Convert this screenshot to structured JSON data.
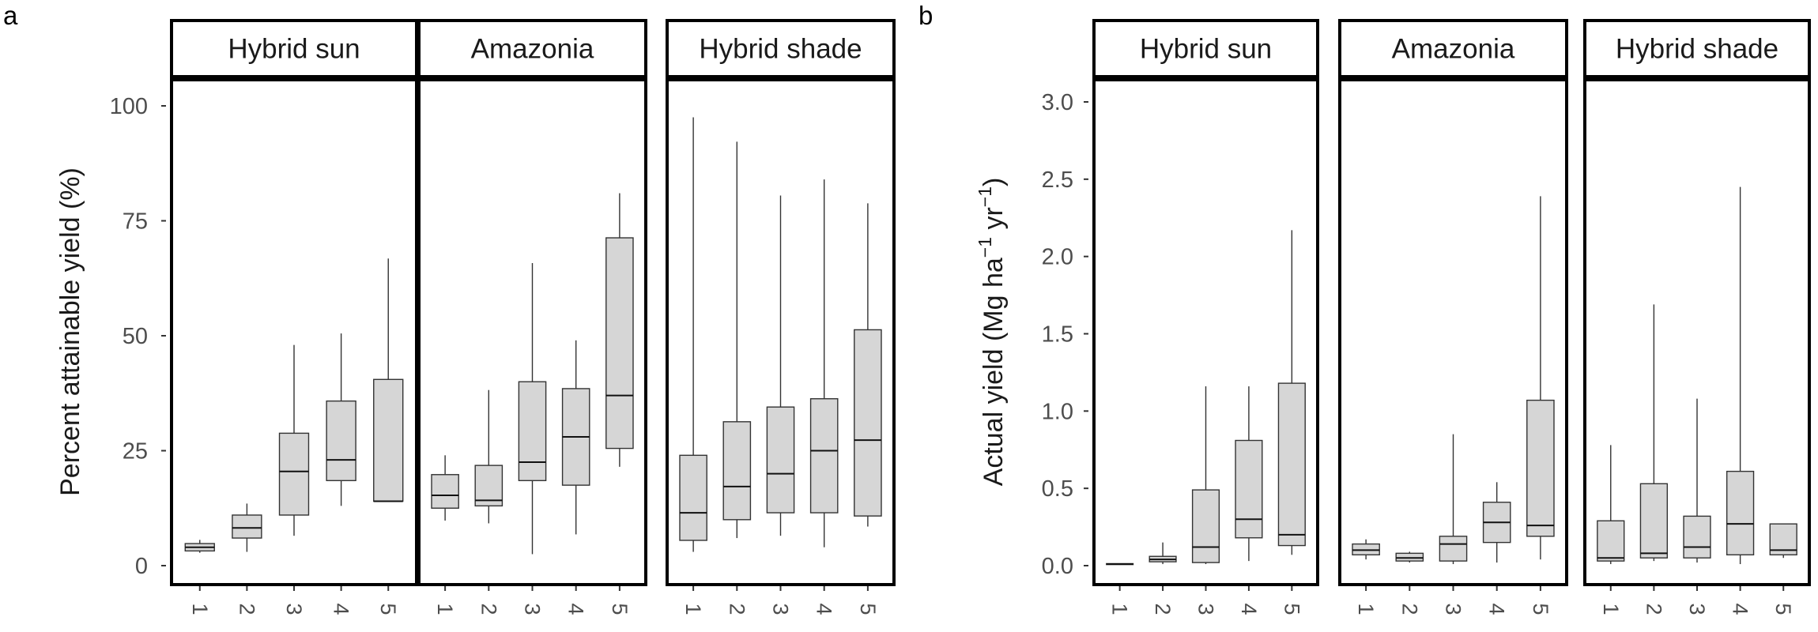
{
  "figure": {
    "panel_a_label": "a",
    "panel_b_label": "b"
  },
  "colors": {
    "box_fill": "#d6d6d6",
    "stroke": "#000000",
    "whisker": "#333333",
    "tick_text": "#4d4d4d",
    "axis_title": "#1a1a1a"
  },
  "chart_data": [
    {
      "type": "boxplot",
      "panel": "a",
      "ylabel": "Percent attainable yield (%)",
      "xlabel": "",
      "ylim": [
        -4,
        115
      ],
      "yticks": [
        0,
        25,
        50,
        75,
        100
      ],
      "grid": false,
      "legend": "none",
      "facets": [
        {
          "name": "Hybrid sun",
          "categories": [
            "1",
            "2",
            "3",
            "4",
            "5"
          ],
          "boxes": [
            {
              "category": "1",
              "min": 2.8,
              "q1": 3.2,
              "median": 4.0,
              "q3": 4.8,
              "max": 5.6
            },
            {
              "category": "2",
              "min": 3.0,
              "q1": 6.0,
              "median": 8.2,
              "q3": 11.0,
              "max": 13.5
            },
            {
              "category": "3",
              "min": 6.5,
              "q1": 11.0,
              "median": 20.5,
              "q3": 28.8,
              "max": 48.0
            },
            {
              "category": "4",
              "min": 13.0,
              "q1": 18.5,
              "median": 23.0,
              "q3": 35.8,
              "max": 50.5
            },
            {
              "category": "5",
              "min": 14.0,
              "q1": 14.0,
              "median": 14.0,
              "q3": 40.5,
              "max": 66.8
            }
          ]
        },
        {
          "name": "Amazonia",
          "categories": [
            "1",
            "2",
            "3",
            "4",
            "5"
          ],
          "boxes": [
            {
              "category": "1",
              "min": 9.8,
              "q1": 12.5,
              "median": 15.3,
              "q3": 19.8,
              "max": 24.0
            },
            {
              "category": "2",
              "min": 9.2,
              "q1": 13.0,
              "median": 14.2,
              "q3": 21.8,
              "max": 38.2
            },
            {
              "category": "3",
              "min": 2.5,
              "q1": 18.5,
              "median": 22.5,
              "q3": 40.0,
              "max": 65.8
            },
            {
              "category": "4",
              "min": 6.8,
              "q1": 17.5,
              "median": 28.0,
              "q3": 38.5,
              "max": 49.0
            },
            {
              "category": "5",
              "min": 21.5,
              "q1": 25.5,
              "median": 37.0,
              "q3": 71.3,
              "max": 81.0
            }
          ]
        },
        {
          "name": "Hybrid shade",
          "categories": [
            "1",
            "2",
            "3",
            "4",
            "5"
          ],
          "boxes": [
            {
              "category": "1",
              "min": 3.0,
              "q1": 5.5,
              "median": 11.5,
              "q3": 24.0,
              "max": 97.5
            },
            {
              "category": "2",
              "min": 6.0,
              "q1": 10.0,
              "median": 17.2,
              "q3": 31.3,
              "max": 92.2
            },
            {
              "category": "3",
              "min": 6.5,
              "q1": 11.5,
              "median": 20.0,
              "q3": 34.5,
              "max": 80.5
            },
            {
              "category": "4",
              "min": 4.0,
              "q1": 11.5,
              "median": 25.0,
              "q3": 36.3,
              "max": 84.0
            },
            {
              "category": "5",
              "min": 8.5,
              "q1": 10.8,
              "median": 27.3,
              "q3": 51.3,
              "max": 78.8
            }
          ]
        }
      ]
    },
    {
      "type": "boxplot",
      "panel": "b",
      "ylabel": "Actual yield (Mg  ha^-1 yr^-1)",
      "ylabel_parts": {
        "prefix": "Actual yield (Mg  ha",
        "sup1": "−1",
        "mid": " yr",
        "sup2": "−1",
        "suffix": ")"
      },
      "xlabel": "",
      "ylim": [
        -0.14,
        3.2
      ],
      "yticks": [
        0.0,
        0.5,
        1.0,
        1.5,
        2.0,
        2.5,
        3.0
      ],
      "ytick_labels": [
        "0.0",
        "0.5",
        "1.0",
        "1.5",
        "2.0",
        "2.5",
        "3.0"
      ],
      "grid": false,
      "legend": "none",
      "facets": [
        {
          "name": "Hybrid sun",
          "categories": [
            "1",
            "2",
            "3",
            "4",
            "5"
          ],
          "boxes": [
            {
              "category": "1",
              "min": 0.005,
              "q1": 0.007,
              "median": 0.01,
              "q3": 0.013,
              "max": 0.015
            },
            {
              "category": "2",
              "min": 0.01,
              "q1": 0.025,
              "median": 0.04,
              "q3": 0.06,
              "max": 0.15
            },
            {
              "category": "3",
              "min": 0.01,
              "q1": 0.02,
              "median": 0.12,
              "q3": 0.49,
              "max": 1.16
            },
            {
              "category": "4",
              "min": 0.03,
              "q1": 0.18,
              "median": 0.3,
              "q3": 0.81,
              "max": 1.16
            },
            {
              "category": "5",
              "min": 0.07,
              "q1": 0.13,
              "median": 0.2,
              "q3": 1.18,
              "max": 2.17
            }
          ]
        },
        {
          "name": "Amazonia",
          "categories": [
            "1",
            "2",
            "3",
            "4",
            "5"
          ],
          "boxes": [
            {
              "category": "1",
              "min": 0.04,
              "q1": 0.07,
              "median": 0.1,
              "q3": 0.14,
              "max": 0.17
            },
            {
              "category": "2",
              "min": 0.02,
              "q1": 0.03,
              "median": 0.05,
              "q3": 0.08,
              "max": 0.09
            },
            {
              "category": "3",
              "min": 0.01,
              "q1": 0.03,
              "median": 0.14,
              "q3": 0.19,
              "max": 0.85
            },
            {
              "category": "4",
              "min": 0.02,
              "q1": 0.15,
              "median": 0.28,
              "q3": 0.41,
              "max": 0.54
            },
            {
              "category": "5",
              "min": 0.04,
              "q1": 0.19,
              "median": 0.26,
              "q3": 1.07,
              "max": 2.39
            }
          ]
        },
        {
          "name": "Hybrid shade",
          "categories": [
            "1",
            "2",
            "3",
            "4",
            "5"
          ],
          "boxes": [
            {
              "category": "1",
              "min": 0.01,
              "q1": 0.03,
              "median": 0.05,
              "q3": 0.29,
              "max": 0.78
            },
            {
              "category": "2",
              "min": 0.03,
              "q1": 0.05,
              "median": 0.08,
              "q3": 0.53,
              "max": 1.69
            },
            {
              "category": "3",
              "min": 0.02,
              "q1": 0.05,
              "median": 0.12,
              "q3": 0.32,
              "max": 1.08
            },
            {
              "category": "4",
              "min": 0.01,
              "q1": 0.07,
              "median": 0.27,
              "q3": 0.61,
              "max": 2.45
            },
            {
              "category": "5",
              "min": 0.05,
              "q1": 0.07,
              "median": 0.1,
              "q3": 0.27,
              "max": 0.27
            }
          ]
        }
      ]
    }
  ]
}
